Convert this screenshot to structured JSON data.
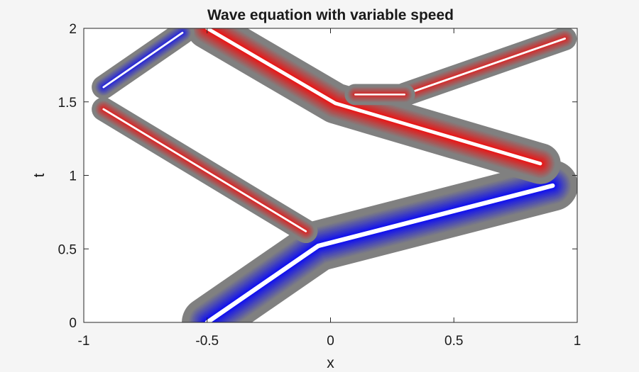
{
  "chart_data": {
    "type": "contour",
    "title": "Wave equation with variable speed",
    "xlabel": "x",
    "ylabel": "t",
    "xlim": [
      -1,
      1
    ],
    "ylim": [
      0,
      2
    ],
    "xticks": [
      -1,
      -0.5,
      0,
      0.5,
      1
    ],
    "xtick_labels": [
      "-1",
      "-0.5",
      "0",
      "0.5",
      "1"
    ],
    "yticks": [
      0,
      0.5,
      1,
      1.5,
      2
    ],
    "ytick_labels": [
      "0",
      "0.5",
      "1",
      "1.5",
      "2"
    ],
    "grid": false,
    "colors": {
      "positive": "#ff0000",
      "negative": "#0000ff",
      "zero": "#808080",
      "background": "#ffffff"
    },
    "features": [
      {
        "name": "primary-wave-up",
        "sign": "negative",
        "amplitude": 1.0,
        "halfwidth": 0.1,
        "path": [
          [
            -0.5,
            0
          ],
          [
            -0.05,
            0.52
          ],
          [
            0.9,
            0.93
          ]
        ]
      },
      {
        "name": "reflected-wave-left",
        "sign": "positive",
        "amplitude": 0.45,
        "halfwidth": 0.045,
        "path": [
          [
            -0.1,
            0.62
          ],
          [
            -0.92,
            1.45
          ]
        ]
      },
      {
        "name": "reflected-wave-back",
        "sign": "positive",
        "amplitude": 0.85,
        "halfwidth": 0.08,
        "path": [
          [
            0.85,
            1.08
          ],
          [
            0.02,
            1.49
          ],
          [
            -0.5,
            2.0
          ]
        ]
      },
      {
        "name": "upper-left-wave",
        "sign": "negative",
        "amplitude": 0.45,
        "halfwidth": 0.045,
        "path": [
          [
            -0.92,
            1.6
          ],
          [
            -0.6,
            1.97
          ]
        ]
      },
      {
        "name": "upper-right-wave",
        "sign": "positive",
        "amplitude": 0.35,
        "halfwidth": 0.045,
        "path": [
          [
            0.3,
            1.55
          ],
          [
            0.95,
            1.93
          ]
        ]
      },
      {
        "name": "center-split-wave",
        "sign": "positive",
        "amplitude": 0.3,
        "halfwidth": 0.04,
        "path": [
          [
            0.1,
            1.55
          ],
          [
            0.3,
            1.55
          ]
        ]
      }
    ]
  }
}
